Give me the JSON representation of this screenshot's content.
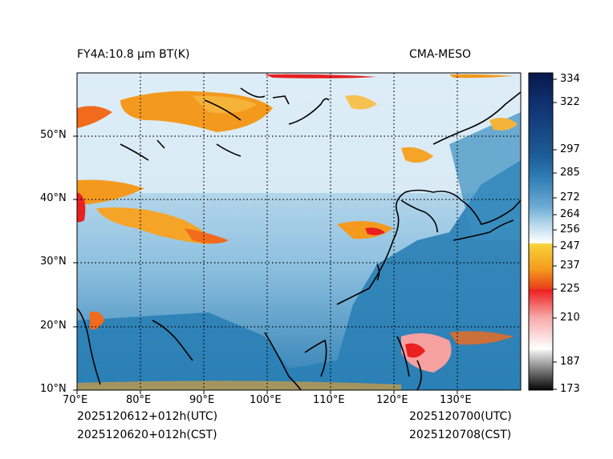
{
  "header": {
    "left_title": "FY4A:10.8 μm BT(K)",
    "right_title": "CMA-MESO"
  },
  "footer": {
    "utc_init": "2025120612+012h(UTC)",
    "cst_init": "2025120620+012h(CST)",
    "utc_valid": "2025120700(UTC)",
    "cst_valid": "2025120708(CST)"
  },
  "map": {
    "lon_labels": [
      "70°E",
      "80°E",
      "90°E",
      "100°E",
      "110°E",
      "120°E",
      "130°E"
    ],
    "lat_labels": [
      "50°N",
      "40°N",
      "30°N",
      "20°N",
      "10°N"
    ],
    "lon_range": [
      70,
      140
    ],
    "lat_range": [
      10,
      60
    ]
  },
  "colorbar": {
    "unit": "K",
    "range": [
      173,
      336
    ],
    "tick_labels": [
      "334",
      "322",
      "297",
      "285",
      "272",
      "264",
      "256",
      "247",
      "237",
      "225",
      "210",
      "187",
      "173"
    ],
    "tick_values": [
      334,
      322,
      297,
      285,
      272,
      264,
      256,
      247,
      237,
      225,
      210,
      187,
      173
    ]
  },
  "colors": {
    "ocean": "#2a7fb5",
    "land_cold": "#a9d0e8",
    "cloud_orange": "#f39a1e",
    "cloud_red": "#e82020",
    "coast": "#000000"
  }
}
